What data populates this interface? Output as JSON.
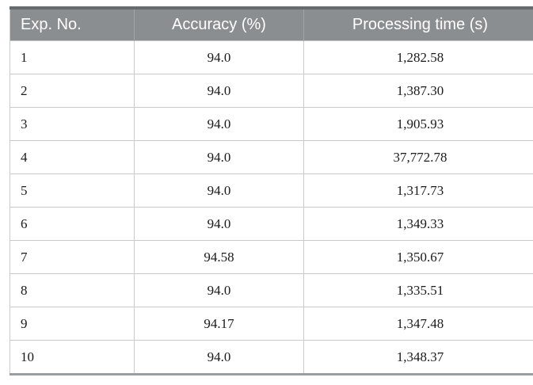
{
  "table": {
    "columns": [
      {
        "label": "Exp. No."
      },
      {
        "label": "Accuracy (%)"
      },
      {
        "label": "Processing time (s)"
      }
    ],
    "rows": [
      {
        "exp_no": "1",
        "accuracy": "94.0",
        "processing_time": "1,282.58"
      },
      {
        "exp_no": "2",
        "accuracy": "94.0",
        "processing_time": "1,387.30"
      },
      {
        "exp_no": "3",
        "accuracy": "94.0",
        "processing_time": "1,905.93"
      },
      {
        "exp_no": "4",
        "accuracy": "94.0",
        "processing_time": "37,772.78"
      },
      {
        "exp_no": "5",
        "accuracy": "94.0",
        "processing_time": "1,317.73"
      },
      {
        "exp_no": "6",
        "accuracy": "94.0",
        "processing_time": "1,349.33"
      },
      {
        "exp_no": "7",
        "accuracy": "94.58",
        "processing_time": "1,350.67"
      },
      {
        "exp_no": "8",
        "accuracy": "94.0",
        "processing_time": "1,335.51"
      },
      {
        "exp_no": "9",
        "accuracy": "94.17",
        "processing_time": "1,347.48"
      },
      {
        "exp_no": "10",
        "accuracy": "94.0",
        "processing_time": "1,348.37"
      }
    ]
  },
  "chart_data": {
    "type": "table",
    "title": "",
    "columns": [
      "Exp. No.",
      "Accuracy (%)",
      "Processing time (s)"
    ],
    "rows": [
      [
        1,
        94.0,
        1282.58
      ],
      [
        2,
        94.0,
        1387.3
      ],
      [
        3,
        94.0,
        1905.93
      ],
      [
        4,
        94.0,
        37772.78
      ],
      [
        5,
        94.0,
        1317.73
      ],
      [
        6,
        94.0,
        1349.33
      ],
      [
        7,
        94.58,
        1350.67
      ],
      [
        8,
        94.0,
        1335.51
      ],
      [
        9,
        94.17,
        1347.48
      ],
      [
        10,
        94.0,
        1348.37
      ]
    ]
  },
  "colors": {
    "header_bg": "#8b8e90",
    "header_top_border": "#686b6d",
    "header_text": "#ffffff",
    "header_divider": "#a2a5a7",
    "grid_line": "#c9cacb",
    "bottom_border": "#9b9ea0",
    "body_text": "#1a1a1a",
    "background": "#ffffff"
  }
}
